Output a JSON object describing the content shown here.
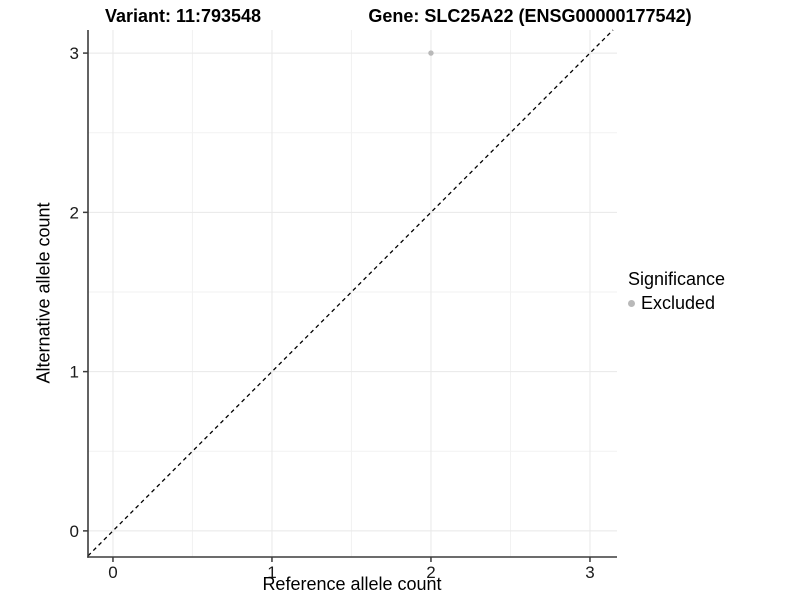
{
  "titles": {
    "variant": "Variant: 11:793548",
    "gene": "Gene: SLC25A22 (ENSG00000177542)"
  },
  "axes": {
    "x": {
      "label": "Reference allele count",
      "tick_labels": [
        "0",
        "1",
        "2",
        "3"
      ]
    },
    "y": {
      "label": "Alternative allele count",
      "tick_labels": [
        "0",
        "1",
        "2",
        "3"
      ]
    }
  },
  "legend": {
    "title": "Significance",
    "items": [
      {
        "label": "Excluded",
        "color": "#b9b9b9"
      }
    ]
  },
  "chart_data": {
    "type": "scatter",
    "title": "Variant: 11:793548 | Gene: SLC25A22 (ENSG00000177542)",
    "xlabel": "Reference allele count",
    "ylabel": "Alternative allele count",
    "xlim": [
      -0.157,
      3.17
    ],
    "ylim": [
      -0.164,
      3.145
    ],
    "x_major_ticks": [
      0,
      1,
      2,
      3
    ],
    "y_major_ticks": [
      0,
      1,
      2,
      3
    ],
    "x_minor_ticks": [
      0.5,
      1.5,
      2.5
    ],
    "y_minor_ticks": [
      0.5,
      1.5,
      2.5
    ],
    "grid": true,
    "legend_position": "right",
    "legend_title": "Significance",
    "series": [
      {
        "name": "Excluded",
        "color": "#b9b9b9",
        "points": [
          {
            "x": 2,
            "y": 3
          }
        ]
      }
    ],
    "reference_line": {
      "slope": 1,
      "intercept": 0,
      "linestyle": "dashed",
      "color": "#000000"
    }
  },
  "colors": {
    "background": "#ffffff",
    "grid_major": "#e8e8e8",
    "grid_minor": "#f2f2f2",
    "axis_line": "#3c3c3c",
    "tick_text": "#1a1a1a",
    "point": "#b9b9b9"
  }
}
